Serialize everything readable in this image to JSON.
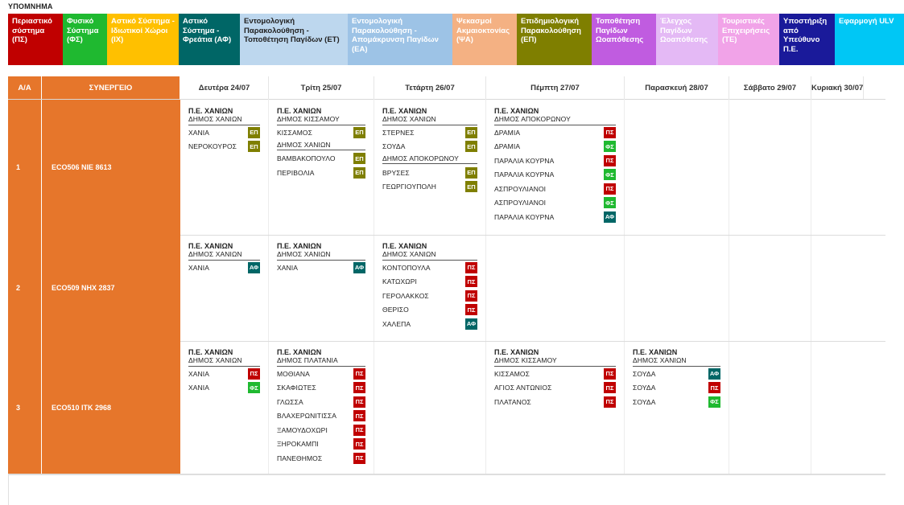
{
  "legend_title": "ΥΠΟΜΝΗΜΑ",
  "legend": [
    {
      "label": "Περιαστικό σύστημα (ΠΣ)",
      "bg": "#c00000",
      "fg": "#ffffff"
    },
    {
      "label": "Φυσικό Σύστημα (ΦΣ)",
      "bg": "#1fb930",
      "fg": "#ffffff"
    },
    {
      "label": "Αστικό Σύστημα - Ιδιωτικοί Χώροι (ΙΧ)",
      "bg": "#ffc000",
      "fg": "#ffffff"
    },
    {
      "label": "Αστικό Σύστημα - Φρεάτια (ΑΦ)",
      "bg": "#006666",
      "fg": "#ffffff"
    },
    {
      "label": "Εντομολογική Παρακολούθηση - Τοποθέτηση Παγίδων (ΕΤ)",
      "bg": "#bdd7ee",
      "fg": "#222222"
    },
    {
      "label": "Εντομολογική Παρακολούθηση - Απομάκρυνση Παγίδων (ΕΑ)",
      "bg": "#9dc3e6",
      "fg": "#ffffff"
    },
    {
      "label": "Ψεκασμοί Ακμαιοκτονίας (ΨΑ)",
      "bg": "#f4b183",
      "fg": "#ffffff"
    },
    {
      "label": "Επιδημιολογική Παρακολούθηση (ΕΠ)",
      "bg": "#7f7f00",
      "fg": "#ffffff"
    },
    {
      "label": "Τοποθέτηση Παγίδων Ωοαπόθεσης",
      "bg": "#c05ce0",
      "fg": "#ffffff"
    },
    {
      "label": "Έλεγχος Παγίδων Ωοαπόθεσης",
      "bg": "#e4b9f5",
      "fg": "#ffffff"
    },
    {
      "label": "Τουριστικές Επιχειρήσεις (ΤΕ)",
      "bg": "#f1a3e8",
      "fg": "#ffffff"
    },
    {
      "label": "Υποστήριξη από Υπεύθυνο Π.Ε.",
      "bg": "#1a1a9a",
      "fg": "#ffffff"
    },
    {
      "label": "Εφαρμογή ULV",
      "bg": "#00c7f5",
      "fg": "#ffffff"
    }
  ],
  "badge_colors": {
    "ΕΠ": "#7f7f00",
    "ΠΣ": "#c00000",
    "ΦΣ": "#1fb930",
    "ΑΦ": "#006666"
  },
  "columns": {
    "aa": "Α/Α",
    "team": "ΣΥΝΕΡΓΕΙΟ",
    "days": [
      "Δευτέρα 24/07",
      "Τρίτη 25/07",
      "Τετάρτη 26/07",
      "Πέμπτη 27/07",
      "Παρασκευή 28/07",
      "Σάββατο 29/07",
      "Κυριακή 30/07"
    ]
  },
  "rows": [
    {
      "aa": "1",
      "team": "ECO506  ΝΙΕ 8613",
      "cells": [
        {
          "pe": "Π.Ε. ΧΑΝΙΩΝ",
          "groups": [
            {
              "mun": "ΔΗΜΟΣ ΧΑΝΙΩΝ",
              "items": [
                {
                  "name": "ΧΑΝΙΑ",
                  "code": "ΕΠ"
                },
                {
                  "name": "ΝΕΡΟΚΟΥΡΟΣ",
                  "code": "ΕΠ"
                }
              ]
            }
          ]
        },
        {
          "pe": "Π.Ε. ΧΑΝΙΩΝ",
          "groups": [
            {
              "mun": "ΔΗΜΟΣ ΚΙΣΣΑΜΟΥ",
              "items": [
                {
                  "name": "ΚΙΣΣΑΜΟΣ",
                  "code": "ΕΠ"
                }
              ]
            },
            {
              "mun": "ΔΗΜΟΣ ΧΑΝΙΩΝ",
              "items": [
                {
                  "name": "ΒΑΜΒΑΚΟΠΟΥΛΟ",
                  "code": "ΕΠ"
                },
                {
                  "name": "ΠΕΡΙΒΟΛΙΑ",
                  "code": "ΕΠ"
                }
              ]
            }
          ]
        },
        {
          "pe": "Π.Ε. ΧΑΝΙΩΝ",
          "groups": [
            {
              "mun": "ΔΗΜΟΣ ΧΑΝΙΩΝ",
              "items": [
                {
                  "name": "ΣΤΕΡΝΕΣ",
                  "code": "ΕΠ"
                },
                {
                  "name": "ΣΟΥΔΑ",
                  "code": "ΕΠ"
                }
              ]
            },
            {
              "mun": "ΔΗΜΟΣ ΑΠΟΚΟΡΩΝΟΥ",
              "items": [
                {
                  "name": "ΒΡΥΣΕΣ",
                  "code": "ΕΠ"
                },
                {
                  "name": "ΓΕΩΡΓΙΟΥΠΟΛΗ",
                  "code": "ΕΠ"
                }
              ]
            }
          ]
        },
        {
          "pe": "Π.Ε. ΧΑΝΙΩΝ",
          "groups": [
            {
              "mun": "ΔΗΜΟΣ ΑΠΟΚΟΡΩΝΟΥ",
              "items": [
                {
                  "name": "ΔΡΑΜΙΑ",
                  "code": "ΠΣ"
                },
                {
                  "name": "ΔΡΑΜΙΑ",
                  "code": "ΦΣ"
                },
                {
                  "name": "ΠΑΡΑΛΙΑ ΚΟΥΡΝΑ",
                  "code": "ΠΣ"
                },
                {
                  "name": "ΠΑΡΑΛΙΑ ΚΟΥΡΝΑ",
                  "code": "ΦΣ"
                },
                {
                  "name": "ΑΣΠΡΟΥΛΙΑΝΟΙ",
                  "code": "ΠΣ"
                },
                {
                  "name": "ΑΣΠΡΟΥΛΙΑΝΟΙ",
                  "code": "ΦΣ"
                },
                {
                  "name": "ΠΑΡΑΛΙΑ ΚΟΥΡΝΑ",
                  "code": "ΑΦ"
                }
              ]
            }
          ]
        },
        null,
        null,
        null
      ]
    },
    {
      "aa": "2",
      "team": "ECO509  ΝΗΧ 2837",
      "cells": [
        {
          "pe": "Π.Ε. ΧΑΝΙΩΝ",
          "groups": [
            {
              "mun": "ΔΗΜΟΣ ΧΑΝΙΩΝ",
              "items": [
                {
                  "name": "ΧΑΝΙΑ",
                  "code": "ΑΦ"
                }
              ]
            }
          ]
        },
        {
          "pe": "Π.Ε. ΧΑΝΙΩΝ",
          "groups": [
            {
              "mun": "ΔΗΜΟΣ ΧΑΝΙΩΝ",
              "items": [
                {
                  "name": "ΧΑΝΙΑ",
                  "code": "ΑΦ"
                }
              ]
            }
          ]
        },
        {
          "pe": "Π.Ε. ΧΑΝΙΩΝ",
          "groups": [
            {
              "mun": "ΔΗΜΟΣ ΧΑΝΙΩΝ",
              "items": [
                {
                  "name": "ΚΟΝΤΟΠΟΥΛΑ",
                  "code": "ΠΣ"
                },
                {
                  "name": "ΚΑΤΩΧΩΡΙ",
                  "code": "ΠΣ"
                },
                {
                  "name": "ΓΕΡΟΛΑΚΚΟΣ",
                  "code": "ΠΣ"
                },
                {
                  "name": "ΘΕΡΙΣΟ",
                  "code": "ΠΣ"
                },
                {
                  "name": "ΧΑΛΕΠΑ",
                  "code": "ΑΦ"
                }
              ]
            }
          ]
        },
        null,
        null,
        null,
        null
      ]
    },
    {
      "aa": "3",
      "team": "ECO510  ΙΤΚ 2968",
      "cells": [
        {
          "pe": "Π.Ε. ΧΑΝΙΩΝ",
          "groups": [
            {
              "mun": "ΔΗΜΟΣ ΧΑΝΙΩΝ",
              "items": [
                {
                  "name": "ΧΑΝΙΑ",
                  "code": "ΠΣ"
                },
                {
                  "name": "ΧΑΝΙΑ",
                  "code": "ΦΣ"
                }
              ]
            }
          ]
        },
        {
          "pe": "Π.Ε. ΧΑΝΙΩΝ",
          "groups": [
            {
              "mun": "ΔΗΜΟΣ ΠΛΑΤΑΝΙΑ",
              "items": [
                {
                  "name": "ΜΟΘΙΑΝΑ",
                  "code": "ΠΣ"
                },
                {
                  "name": "ΣΚΑΦΙΩΤΕΣ",
                  "code": "ΠΣ"
                },
                {
                  "name": "ΓΛΩΣΣΑ",
                  "code": "ΠΣ"
                },
                {
                  "name": "ΒΛΑΧΕΡΩΝΙΤΙΣΣΑ",
                  "code": "ΠΣ"
                },
                {
                  "name": "ΞΑΜΟΥΔΟΧΩΡΙ",
                  "code": "ΠΣ"
                },
                {
                  "name": "ΞΗΡΟΚΑΜΠΙ",
                  "code": "ΠΣ"
                },
                {
                  "name": "ΠΑΝΕΘΗΜΟΣ",
                  "code": "ΠΣ"
                }
              ]
            }
          ]
        },
        null,
        {
          "pe": "Π.Ε. ΧΑΝΙΩΝ",
          "groups": [
            {
              "mun": "ΔΗΜΟΣ ΚΙΣΣΑΜΟΥ",
              "items": [
                {
                  "name": "ΚΙΣΣΑΜΟΣ",
                  "code": "ΠΣ"
                },
                {
                  "name": "ΑΓΙΟΣ ΑΝΤΩΝΙΟΣ",
                  "code": "ΠΣ"
                },
                {
                  "name": "ΠΛΑΤΑΝΟΣ",
                  "code": "ΠΣ"
                }
              ]
            }
          ]
        },
        {
          "pe": "Π.Ε. ΧΑΝΙΩΝ",
          "groups": [
            {
              "mun": "ΔΗΜΟΣ ΧΑΝΙΩΝ",
              "items": [
                {
                  "name": "ΣΟΥΔΑ",
                  "code": "ΑΦ"
                },
                {
                  "name": "ΣΟΥΔΑ",
                  "code": "ΠΣ"
                },
                {
                  "name": "ΣΟΥΔΑ",
                  "code": "ΦΣ"
                }
              ]
            }
          ]
        },
        null,
        null
      ]
    }
  ]
}
